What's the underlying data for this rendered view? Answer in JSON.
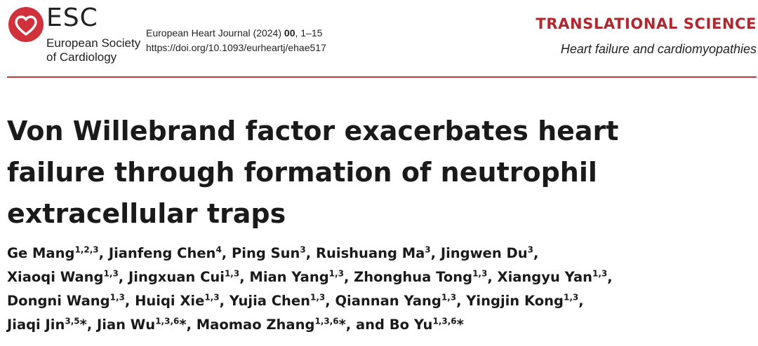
{
  "header": {
    "logo_icon": "esc-heart-logo-icon",
    "brand_color": "#d0313a",
    "esc_word": "ESC",
    "society_line1": "European Society",
    "society_line2": "of Cardiology",
    "journal_name": "European Heart Journal (2024)",
    "journal_volume": "00",
    "journal_pages": ", 1–15",
    "doi": "https://doi.org/10.1093/eurheartj/ehae517",
    "section": "TRANSLATIONAL SCIENCE",
    "section_color": "#b0272e",
    "subsection": "Heart failure and cardiomyopathies"
  },
  "article": {
    "title_lines": [
      "Von Willebrand factor exacerbates heart",
      "failure through formation of neutrophil",
      "extracellular traps"
    ],
    "author_lines": [
      [
        {
          "name": "Ge Mang",
          "aff": "1,2,3",
          "sep": ", "
        },
        {
          "name": "Jianfeng Chen",
          "aff": "4",
          "sep": ", "
        },
        {
          "name": "Ping Sun",
          "aff": "3",
          "sep": ", "
        },
        {
          "name": "Ruishuang Ma",
          "aff": "3",
          "sep": ", "
        },
        {
          "name": "Jingwen Du",
          "aff": "3",
          "sep": ","
        }
      ],
      [
        {
          "name": "Xiaoqi Wang",
          "aff": "1,3",
          "sep": ", "
        },
        {
          "name": "Jingxuan Cui",
          "aff": "1,3",
          "sep": ", "
        },
        {
          "name": "Mian Yang",
          "aff": "1,3",
          "sep": ", "
        },
        {
          "name": "Zhonghua Tong",
          "aff": "1,3",
          "sep": ", "
        },
        {
          "name": "Xiangyu Yan",
          "aff": "1,3",
          "sep": ","
        }
      ],
      [
        {
          "name": "Dongni Wang",
          "aff": "1,3",
          "sep": ", "
        },
        {
          "name": "Huiqi Xie",
          "aff": "1,3",
          "sep": ", "
        },
        {
          "name": "Yujia Chen",
          "aff": "1,3",
          "sep": ", "
        },
        {
          "name": "Qiannan Yang",
          "aff": "1,3",
          "sep": ", "
        },
        {
          "name": "Yingjin Kong",
          "aff": "1,3",
          "sep": ","
        }
      ],
      [
        {
          "name": "Jiaqi Jin",
          "aff": "3,5",
          "sep": "*, "
        },
        {
          "name": "Jian Wu",
          "aff": "1,3,6",
          "sep": "*, "
        },
        {
          "name": "Maomao Zhang",
          "aff": "1,3,6",
          "sep": "*, and "
        },
        {
          "name": "Bo Yu",
          "aff": "1,3,6",
          "sep": "*"
        }
      ]
    ]
  }
}
